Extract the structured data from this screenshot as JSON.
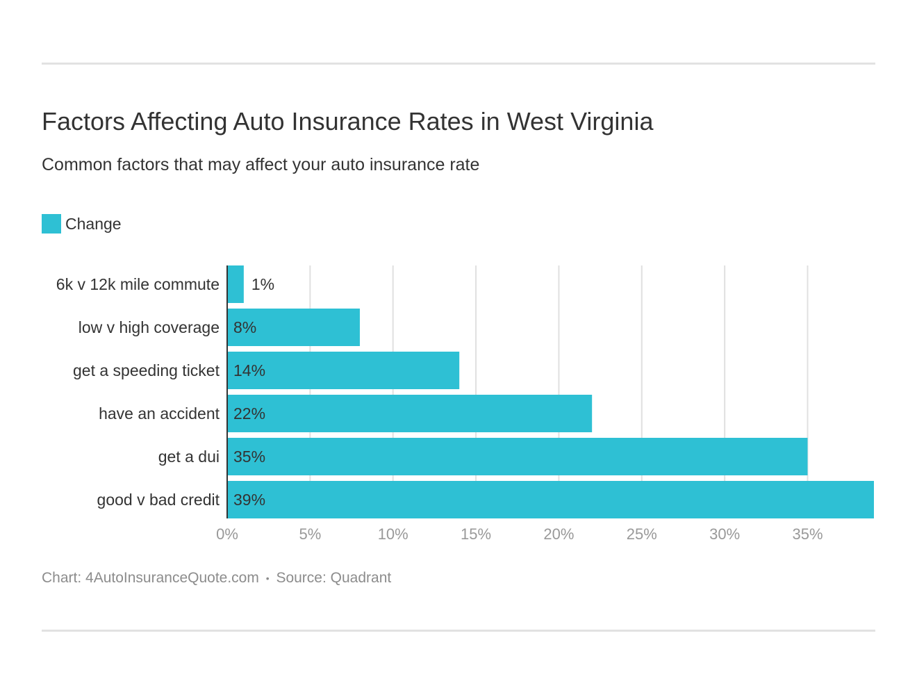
{
  "title": "Factors Affecting Auto Insurance Rates in West Virginia",
  "subtitle": "Common factors that may affect your auto insurance rate",
  "legend": {
    "label": "Change",
    "color": "#2ec0d4"
  },
  "footer": {
    "chart_credit": "Chart: 4AutoInsuranceQuote.com",
    "separator": "•",
    "source": "Source: Quadrant"
  },
  "chart_data": {
    "type": "bar",
    "orientation": "horizontal",
    "categories": [
      "6k v 12k mile commute",
      "low v high coverage",
      "get a speeding ticket",
      "have an accident",
      "get a dui",
      "good v bad credit"
    ],
    "series": [
      {
        "name": "Change",
        "values": [
          1,
          8,
          14,
          22,
          35,
          39
        ],
        "labels": [
          "1%",
          "8%",
          "14%",
          "22%",
          "35%",
          "39%"
        ],
        "color": "#2ec0d4"
      }
    ],
    "x_ticks": [
      0,
      5,
      10,
      15,
      20,
      25,
      30,
      35
    ],
    "x_tick_labels": [
      "0%",
      "5%",
      "10%",
      "15%",
      "20%",
      "25%",
      "30%",
      "35%"
    ],
    "xlim": [
      0,
      39
    ],
    "grid": true,
    "legend_position": "top-left"
  }
}
